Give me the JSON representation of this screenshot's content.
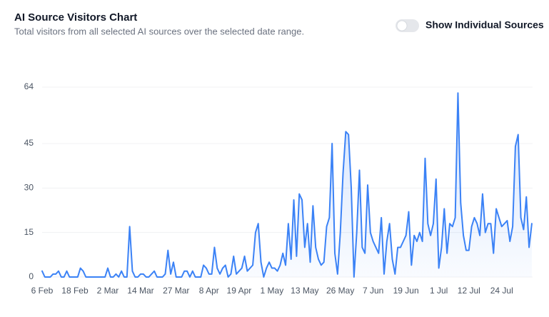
{
  "chart_data": {
    "type": "line",
    "title": "AI Source Visitors Chart",
    "subtitle": "Total visitors from all selected AI sources over the selected date range.",
    "toggle": {
      "label": "Show Individual Sources",
      "checked": false
    },
    "categories": [
      "6 Feb",
      null,
      null,
      null,
      null,
      null,
      null,
      null,
      null,
      null,
      null,
      null,
      "18 Feb",
      null,
      null,
      null,
      null,
      null,
      null,
      null,
      null,
      null,
      null,
      null,
      "2 Mar",
      null,
      null,
      null,
      null,
      null,
      null,
      null,
      null,
      null,
      null,
      null,
      "14 Mar",
      null,
      null,
      null,
      null,
      null,
      null,
      null,
      null,
      null,
      null,
      null,
      null,
      "27 Mar",
      null,
      null,
      null,
      null,
      null,
      null,
      null,
      null,
      null,
      null,
      null,
      "8 Apr",
      null,
      null,
      null,
      null,
      null,
      null,
      null,
      null,
      null,
      null,
      "19 Apr",
      null,
      null,
      null,
      null,
      null,
      null,
      null,
      null,
      null,
      null,
      null,
      "1 May",
      null,
      null,
      null,
      null,
      null,
      null,
      null,
      null,
      null,
      null,
      null,
      "13 May",
      null,
      null,
      null,
      null,
      null,
      null,
      null,
      null,
      null,
      null,
      null,
      null,
      "26 May",
      null,
      null,
      null,
      null,
      null,
      null,
      null,
      null,
      null,
      null,
      null,
      "7 Jun",
      null,
      null,
      null,
      null,
      null,
      null,
      null,
      null,
      null,
      null,
      null,
      "19 Jun",
      null,
      null,
      null,
      null,
      null,
      null,
      null,
      null,
      null,
      null,
      null,
      "1 Jul",
      null,
      null,
      null,
      null,
      null,
      null,
      null,
      null,
      null,
      null,
      "12 Jul",
      null,
      null,
      null,
      null,
      null,
      null,
      null,
      null,
      null,
      null,
      null,
      "24 Jul",
      null,
      null,
      null,
      null,
      null,
      null,
      null,
      null,
      null,
      null,
      null
    ],
    "series": [
      {
        "color": "#3b82f6",
        "values": [
          2,
          0,
          0,
          0,
          1,
          1,
          2,
          0,
          0,
          2,
          0,
          0,
          0,
          0,
          3,
          2,
          0,
          0,
          0,
          0,
          0,
          0,
          0,
          0,
          3,
          0,
          0,
          1,
          0,
          2,
          0,
          0,
          17,
          2,
          0,
          0,
          1,
          1,
          0,
          0,
          1,
          2,
          0,
          0,
          0,
          1,
          9,
          1,
          5,
          0,
          0,
          0,
          2,
          2,
          0,
          2,
          0,
          0,
          0,
          4,
          3,
          1,
          1,
          10,
          3,
          1,
          3,
          4,
          0,
          1,
          7,
          1,
          2,
          3,
          7,
          2,
          3,
          4,
          15,
          18,
          5,
          0,
          3,
          5,
          3,
          3,
          2,
          4,
          8,
          4,
          18,
          6,
          26,
          7,
          28,
          26,
          10,
          18,
          5,
          24,
          10,
          6,
          4,
          5,
          17,
          20,
          45,
          8,
          1,
          15,
          35,
          49,
          48,
          30,
          0,
          15,
          36,
          10,
          8,
          31,
          15,
          12,
          10,
          8,
          20,
          1,
          12,
          18,
          6,
          1,
          10,
          10,
          12,
          14,
          22,
          4,
          14,
          12,
          15,
          12,
          40,
          18,
          14,
          18,
          33,
          3,
          10,
          23,
          8,
          18,
          17,
          20,
          62,
          25,
          14,
          9,
          9,
          17,
          20,
          18,
          14,
          28,
          15,
          18,
          18,
          8,
          23,
          20,
          17,
          18,
          19,
          12,
          17,
          44,
          48,
          20,
          16,
          27,
          10,
          18
        ]
      }
    ],
    "ylim": [
      0,
      64
    ],
    "yticks": [
      0,
      15,
      30,
      45,
      64
    ],
    "grid": true
  }
}
